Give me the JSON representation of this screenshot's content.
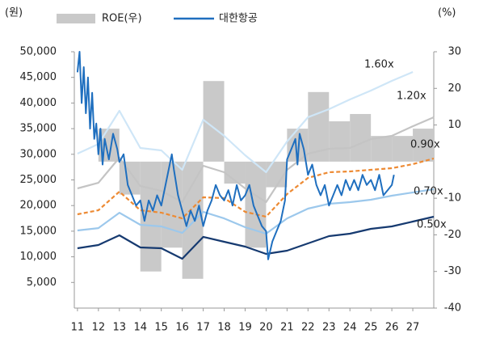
{
  "chart_data": {
    "type": "line",
    "y_label": "(원)",
    "y2_label": "(%)",
    "xlim": [
      10.85,
      28
    ],
    "xticks": [
      11,
      12,
      13,
      14,
      15,
      16,
      17,
      18,
      19,
      20,
      21,
      22,
      23,
      24,
      25,
      26,
      27
    ],
    "ylim": [
      0,
      50000
    ],
    "yticks": [
      {
        "value": 5000,
        "label": "5,000"
      },
      {
        "value": 10000,
        "label": "10,000"
      },
      {
        "value": 15000,
        "label": "15,000"
      },
      {
        "value": 20000,
        "label": "20,000"
      },
      {
        "value": 25000,
        "label": "25,000"
      },
      {
        "value": 30000,
        "label": "30,000"
      },
      {
        "value": 35000,
        "label": "35,000"
      },
      {
        "value": 40000,
        "label": "40,000"
      },
      {
        "value": 45000,
        "label": "45,000"
      },
      {
        "value": 50000,
        "label": "50,000"
      }
    ],
    "y2lim": [
      -40,
      30
    ],
    "y2ticks": [
      30,
      20,
      10,
      -10,
      -20,
      -30,
      -40
    ],
    "series": [
      {
        "name": "ROE(우)",
        "type": "bar",
        "axis": "y2",
        "color": "#c9c9c9",
        "bar_width": 1,
        "x": [
          12.5,
          13.5,
          14.5,
          15.5,
          16.5,
          17.5,
          18.5,
          19.5,
          20.5,
          21.5,
          22.5,
          23.5,
          24.5,
          25.5,
          26.5,
          27.5
        ],
        "values": [
          9,
          -9,
          -30,
          -23.5,
          -32,
          22,
          -6,
          -23.5,
          -7,
          9,
          19,
          11,
          13,
          7,
          7,
          9
        ]
      },
      {
        "name": "대한항공",
        "type": "line",
        "color": "#1f6fbf",
        "x": [
          11.0,
          11.1,
          11.2,
          11.3,
          11.4,
          11.5,
          11.6,
          11.7,
          11.8,
          11.9,
          12.0,
          12.1,
          12.2,
          12.3,
          12.5,
          12.7,
          12.9,
          13.0,
          13.2,
          13.4,
          13.6,
          13.8,
          14.0,
          14.2,
          14.4,
          14.6,
          14.8,
          15.0,
          15.2,
          15.4,
          15.5,
          15.6,
          15.8,
          16.0,
          16.2,
          16.4,
          16.6,
          16.8,
          17.0,
          17.2,
          17.4,
          17.6,
          17.8,
          18.0,
          18.2,
          18.4,
          18.6,
          18.8,
          19.0,
          19.2,
          19.4,
          19.6,
          19.8,
          20.0,
          20.1,
          20.3,
          20.5,
          20.7,
          20.9,
          21.0,
          21.2,
          21.4,
          21.5,
          21.6,
          21.8,
          22.0,
          22.2,
          22.4,
          22.6,
          22.8,
          23.0,
          23.2,
          23.4,
          23.6,
          23.8,
          24.0,
          24.2,
          24.4,
          24.6,
          24.8,
          25.0,
          25.2,
          25.4,
          25.6,
          25.8,
          26.0,
          26.1
        ],
        "values": [
          46000,
          50000,
          40000,
          47000,
          38000,
          45000,
          35000,
          42000,
          33000,
          36000,
          30000,
          35000,
          28000,
          33000,
          29000,
          34000,
          31000,
          28500,
          30000,
          24000,
          22000,
          20000,
          21000,
          17000,
          21000,
          19000,
          22000,
          20000,
          24000,
          28000,
          30000,
          27000,
          22000,
          19000,
          16000,
          19000,
          17000,
          20000,
          16000,
          19000,
          21000,
          24000,
          22000,
          21000,
          23000,
          20000,
          24000,
          21000,
          22000,
          24000,
          20000,
          18000,
          16000,
          15000,
          9500,
          13000,
          15000,
          17000,
          21000,
          29000,
          31000,
          33000,
          28000,
          34000,
          31000,
          26000,
          28000,
          24000,
          22000,
          24000,
          20000,
          22000,
          24000,
          22000,
          25000,
          23000,
          25000,
          23000,
          26000,
          24000,
          25000,
          23000,
          26000,
          22000,
          23000,
          24000,
          26000
        ]
      }
    ],
    "bands_x": [
      11,
      12,
      13,
      14,
      15,
      16,
      17,
      18,
      19,
      20,
      21,
      22,
      23,
      24,
      25,
      26,
      27,
      28
    ],
    "bands": [
      {
        "name": "1.60x",
        "color": "#cfe6f7",
        "dash": false,
        "values": [
          30120,
          32010,
          38480,
          31230,
          30750,
          26970,
          36750,
          33590,
          29810,
          26500,
          32490,
          37220,
          38800,
          40690,
          42430,
          44320,
          46060,
          null
        ]
      },
      {
        "name": "1.20x",
        "color": "#c4c4c4",
        "dash": false,
        "values": [
          23350,
          24440,
          29330,
          23810,
          22870,
          20660,
          27760,
          26500,
          23350,
          20660,
          26970,
          30120,
          31070,
          31230,
          32960,
          33590,
          35480,
          37220
        ]
      },
      {
        "name": "0.90x",
        "color": "#ed8a33",
        "dash": true,
        "values": [
          18300,
          19080,
          22710,
          19080,
          18610,
          17500,
          21610,
          21450,
          18770,
          17820,
          22240,
          25400,
          26500,
          26660,
          26970,
          27280,
          28070,
          29180
        ]
      },
      {
        "name": "0.70x",
        "color": "#9cc8ec",
        "dash": false,
        "values": [
          15140,
          15600,
          18600,
          16240,
          15930,
          14670,
          18770,
          17500,
          15770,
          14510,
          17500,
          19400,
          20350,
          20660,
          21130,
          21920,
          22560,
          23190
        ]
      },
      {
        "name": "0.50x",
        "color": "#163a70",
        "dash": false,
        "values": [
          11670,
          12300,
          14200,
          11830,
          11670,
          9620,
          13880,
          12930,
          11990,
          10570,
          11200,
          12620,
          14040,
          14510,
          15460,
          15930,
          16880,
          17820
        ]
      }
    ]
  }
}
